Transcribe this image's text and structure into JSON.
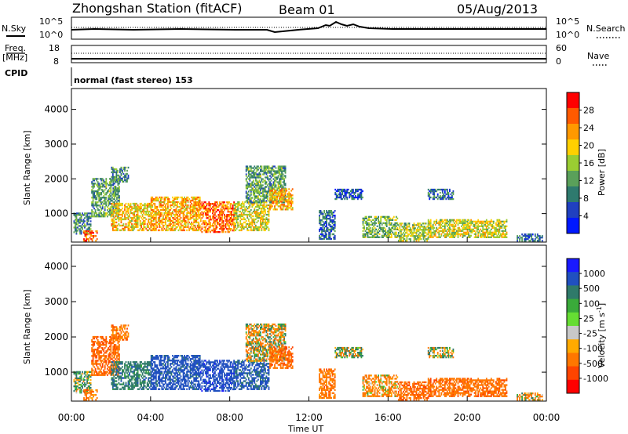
{
  "header": {
    "station": "Zhongshan Station (fitACF)",
    "beam": "Beam 01",
    "date": "05/Aug/2013"
  },
  "sky_panel": {
    "left_label": "N.Sky",
    "right_label": "N.Search",
    "ticks_left": [
      "10^5",
      "10^0"
    ],
    "ticks_right": [
      "10^5",
      "10^0"
    ],
    "legend_style": "dotted"
  },
  "freq_panel": {
    "left_label": "Freq.",
    "left_unit": "[MHz]",
    "right_label": "Nave",
    "ticks_left": [
      "18",
      "8"
    ],
    "ticks_right": [
      "60",
      "0"
    ],
    "legend_style": "dotted"
  },
  "cpid": {
    "label": "CPID",
    "text": "normal (fast stereo) 153"
  },
  "power_panel": {
    "ylabel": "Slant Range [km]",
    "yticks": [
      "4000",
      "3000",
      "2000",
      "1000"
    ],
    "colorbar_label": "Power [dB]",
    "colorbar_ticks": [
      "28",
      "24",
      "20",
      "16",
      "12",
      "8",
      "4"
    ],
    "colorbar_colors": [
      "#ff0000",
      "#ff5a00",
      "#ff9900",
      "#ffd000",
      "#9acd32",
      "#5aa05a",
      "#2e7a6e",
      "#2040c0",
      "#0018ff"
    ]
  },
  "velocity_panel": {
    "ylabel": "Slant Range [km]",
    "yticks": [
      "4000",
      "3000",
      "2000",
      "1000"
    ],
    "colorbar_label": "Velocity [m s",
    "colorbar_label_sup": "-1",
    "colorbar_label_end": "]",
    "colorbar_ticks": [
      "1000",
      "500",
      "100",
      "25",
      "-25",
      "-100",
      "-500",
      "-1000"
    ],
    "colorbar_colors": [
      "#1a1aff",
      "#2050c0",
      "#2f7a6a",
      "#3aaa3a",
      "#66dd33",
      "#c8c8c8",
      "#ffaa00",
      "#ff7700",
      "#ff4400",
      "#ff0000"
    ]
  },
  "xaxis": {
    "ticks": [
      "00:00",
      "04:00",
      "08:00",
      "12:00",
      "16:00",
      "20:00",
      "00:00"
    ],
    "label": "Time UT"
  },
  "chart_data": {
    "type": "heatmap",
    "x_range_hours_ut": [
      0,
      24
    ],
    "y_range_km": [
      180,
      4600
    ],
    "power_db_range": [
      0,
      32
    ],
    "velocity_range": [
      -1000,
      1000
    ],
    "echo_regions": [
      {
        "t": [
          0.1,
          1.0
        ],
        "r": [
          400,
          1000
        ],
        "power": 10,
        "velocity": 100
      },
      {
        "t": [
          0.6,
          1.3
        ],
        "r": [
          200,
          500
        ],
        "power": 26,
        "velocity": -300
      },
      {
        "t": [
          1.0,
          2.4
        ],
        "r": [
          900,
          2000
        ],
        "power": 12,
        "velocity": -400
      },
      {
        "t": [
          2.0,
          2.9
        ],
        "r": [
          1900,
          2350
        ],
        "power": 10,
        "velocity": -300
      },
      {
        "t": [
          2.0,
          4.0
        ],
        "r": [
          500,
          1300
        ],
        "power": 20,
        "velocity": 300
      },
      {
        "t": [
          4.0,
          6.5
        ],
        "r": [
          500,
          1450
        ],
        "power": 22,
        "velocity": 700
      },
      {
        "t": [
          6.5,
          8.2
        ],
        "r": [
          450,
          1350
        ],
        "power": 26,
        "velocity": 800
      },
      {
        "t": [
          8.2,
          10.0
        ],
        "r": [
          500,
          1350
        ],
        "power": 18,
        "velocity": 600
      },
      {
        "t": [
          8.8,
          10.8
        ],
        "r": [
          1300,
          2350
        ],
        "power": 12,
        "velocity": -50
      },
      {
        "t": [
          10.0,
          11.2
        ],
        "r": [
          1100,
          1700
        ],
        "power": 22,
        "velocity": -400
      },
      {
        "t": [
          12.5,
          13.3
        ],
        "r": [
          250,
          1100
        ],
        "power": 8,
        "velocity": -300
      },
      {
        "t": [
          13.3,
          14.7
        ],
        "r": [
          1400,
          1700
        ],
        "power": 6,
        "velocity": 0
      },
      {
        "t": [
          14.7,
          16.5
        ],
        "r": [
          300,
          900
        ],
        "power": 14,
        "velocity": -200
      },
      {
        "t": [
          16.5,
          18.0
        ],
        "r": [
          200,
          700
        ],
        "power": 16,
        "velocity": -400
      },
      {
        "t": [
          18.0,
          19.3
        ],
        "r": [
          1400,
          1700
        ],
        "power": 8,
        "velocity": 0
      },
      {
        "t": [
          18.0,
          22.0
        ],
        "r": [
          300,
          800
        ],
        "power": 18,
        "velocity": -350
      },
      {
        "t": [
          22.5,
          23.8
        ],
        "r": [
          200,
          400
        ],
        "power": 8,
        "velocity": -100
      }
    ]
  }
}
